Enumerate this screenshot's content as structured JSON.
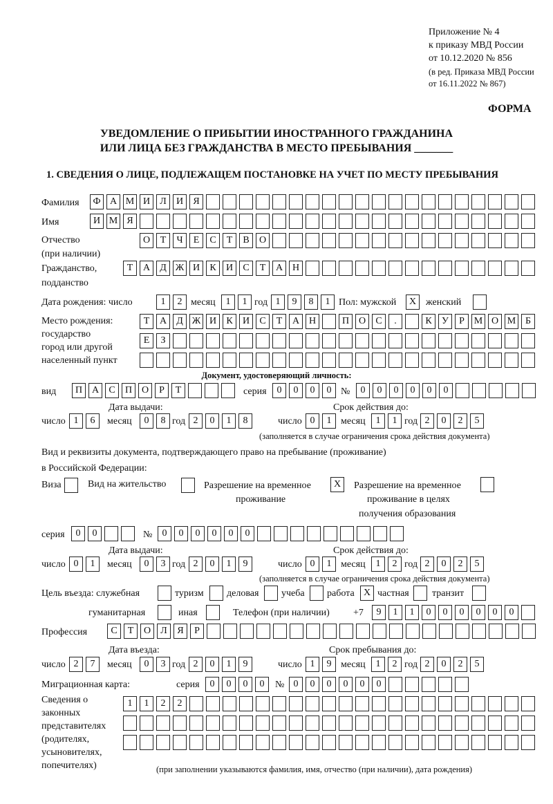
{
  "header": {
    "line1": "Приложение № 4",
    "line2": "к приказу МВД России",
    "line3": "от 10.12.2020 № 856",
    "line4": "(в ред. Приказа МВД России",
    "line5": "от 16.11.2022 № 867)",
    "form": "ФОРМА"
  },
  "title": {
    "line1": "УВЕДОМЛЕНИЕ О ПРИБЫТИИ ИНОСТРАННОГО ГРАЖДАНИНА",
    "line2": "ИЛИ ЛИЦА БЕЗ ГРАЖДАНСТВА В МЕСТО ПРЕБЫВАНИЯ _______"
  },
  "section1": "1. СВЕДЕНИЯ О ЛИЦЕ, ПОДЛЕЖАЩЕМ ПОСТАНОВКЕ НА УЧЕТ ПО МЕСТУ ПРЕБЫВАНИЯ",
  "labels": {
    "surname": "Фамилия",
    "name": "Имя",
    "patronymic": "Отчество",
    "patronymic2": "(при наличии)",
    "citizenship": "Гражданство,",
    "citizenship2": "подданство",
    "birth_date": "Дата рождения:  число",
    "month": "месяц",
    "year": "год",
    "day": "число",
    "sex_male": "Пол: мужской",
    "sex_female": "женский",
    "birthplace1": "Место рождения:",
    "birthplace2": "государство",
    "birthplace3": "город или другой",
    "birthplace4": "населенный пункт",
    "id_doc": "Документ, удостоверяющий личность:",
    "kind": "вид",
    "series": "серия",
    "number": "№",
    "issue_date": "Дата выдачи:",
    "valid_until": "Срок действия до:",
    "valid_note": "(заполняется в случае ограничения срока действия документа)",
    "stay_doc1": "Вид и реквизиты документа, подтверждающего право на пребывание (проживание)",
    "stay_doc2": "в Российской Федерации:",
    "visa": "Виза",
    "residence": "Вид на жительство",
    "trp": "Разрешение на временное",
    "trp2": "проживание",
    "trp_edu": "Разрешение на временное",
    "trp_edu2": "проживание в целях",
    "trp_edu3": "получения образования",
    "purpose": "Цель въезда: служебная",
    "tourism": "туризм",
    "business": "деловая",
    "study": "учеба",
    "work": "работа",
    "private": "частная",
    "transit": "транзит",
    "humanitarian": "гуманитарная",
    "other": "иная",
    "phone": "Телефон (при наличии)",
    "phone_prefix": "+7",
    "profession": "Профессия",
    "entry_date": "Дата въезда:",
    "stay_until": "Срок пребывания до:",
    "migration_card": "Миграционная карта:",
    "reps1": "Сведения о",
    "reps2": "законных",
    "reps3": "представителях",
    "reps4": "(родителях,",
    "reps5": "усыновителях,",
    "reps6": "попечителях)",
    "reps_note": "(при заполнении указываются фамилия, имя, отчество (при наличии), дата рождения)"
  },
  "values": {
    "surname": "ФАМИЛИЯ",
    "name": "ИМЯ",
    "patronymic": "ОТЧЕСТВО",
    "citizenship": "ТАДЖИКИСТАН",
    "birth_day": "12",
    "birth_month": "11",
    "birth_year": "1981",
    "sex_male": "X",
    "sex_female": "",
    "birthplace1": "ТАДЖИКИСТАН ПОС. КУРМОМБ",
    "birthplace2": "ЕЗ",
    "birthplace3": "",
    "doc_kind": "ПАСПОРТ",
    "doc_series": "0000",
    "doc_number": "000000",
    "doc_issue_day": "16",
    "doc_issue_month": "08",
    "doc_issue_year": "2018",
    "doc_valid_day": "01",
    "doc_valid_month": "11",
    "doc_valid_year": "2025",
    "visa": "",
    "residence": "",
    "trp": "X",
    "trp_edu": "",
    "stay_series": "00",
    "stay_number": "000000",
    "stay_issue_day": "01",
    "stay_issue_month": "03",
    "stay_issue_year": "2019",
    "stay_valid_day": "01",
    "stay_valid_month": "12",
    "stay_valid_year": "2025",
    "purpose_official": "",
    "purpose_tourism": "",
    "purpose_business": "",
    "purpose_study": "",
    "purpose_work": "X",
    "purpose_private": "",
    "purpose_transit": "",
    "purpose_humanitarian": "",
    "purpose_other": "",
    "phone": "911000000",
    "profession": "СТОЛЯР",
    "entry_day": "27",
    "entry_month": "03",
    "entry_year": "2019",
    "stay_until_day": "19",
    "stay_until_month": "12",
    "stay_until_year": "2025",
    "mc_series": "0000",
    "mc_number": "000000",
    "reps1": "1122",
    "reps2": "",
    "reps3": ""
  }
}
